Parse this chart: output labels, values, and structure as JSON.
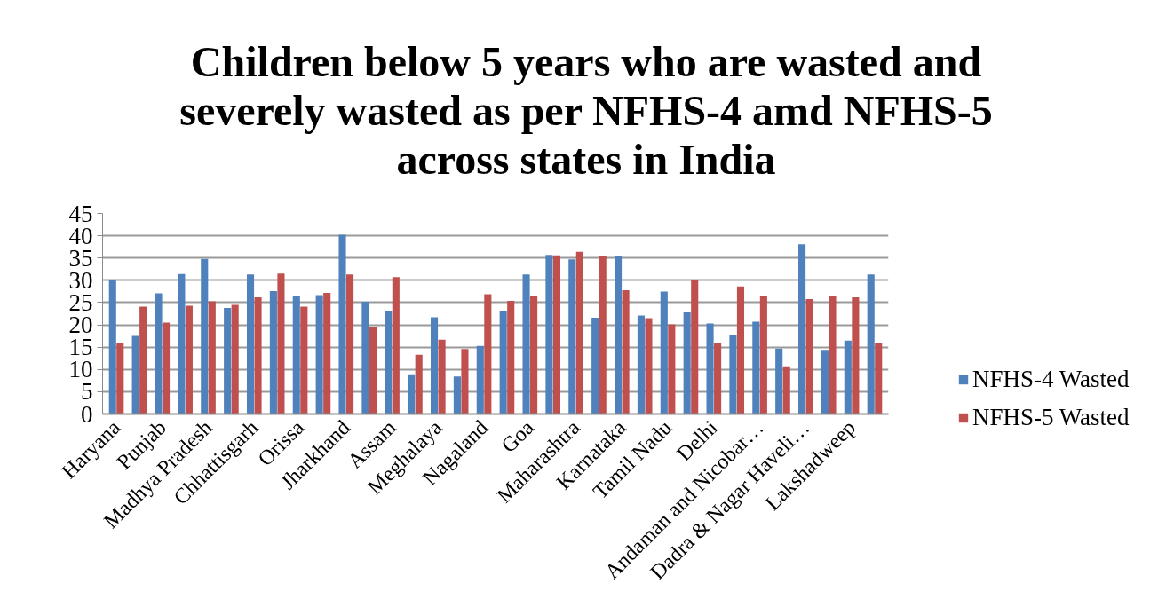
{
  "chart_data": {
    "type": "bar",
    "title": "Children below 5 years who are wasted and severely wasted as per NFHS-4 amd NFHS-5 across states in India",
    "categories": [
      "Haryana",
      null,
      "Punjab",
      null,
      "Madhya Pradesh",
      null,
      "Chhattisgarh",
      null,
      "Orissa",
      null,
      "Jharkhand",
      null,
      "Assam",
      null,
      "Meghalaya",
      null,
      "Nagaland",
      null,
      "Goa",
      null,
      "Maharashtra",
      null,
      "Karnataka",
      null,
      "Tamil Nadu",
      null,
      "Delhi",
      null,
      "Andaman and Nicobar…",
      null,
      "Dadra & Nagar Haveli…",
      null,
      "Lakshadweep",
      null
    ],
    "series": [
      {
        "name": "NFHS-4 Wasted",
        "color": "#4f81bd",
        "values": [
          30.0,
          17.5,
          27.1,
          31.4,
          34.8,
          23.8,
          31.3,
          27.6,
          26.6,
          26.7,
          40.2,
          25.2,
          23.1,
          8.9,
          21.7,
          8.4,
          15.3,
          23.0,
          31.3,
          35.7,
          34.7,
          21.6,
          35.5,
          22.1,
          27.5,
          22.8,
          20.3,
          17.8,
          20.7,
          14.7,
          38.1,
          14.4,
          16.5,
          31.3
        ]
      },
      {
        "name": "NFHS-5 Wasted",
        "color": "#c0504d",
        "values": [
          15.9,
          24.1,
          20.5,
          24.3,
          25.3,
          24.5,
          26.2,
          31.5,
          24.1,
          27.2,
          31.3,
          19.5,
          30.7,
          13.3,
          16.7,
          14.6,
          26.9,
          25.4,
          26.5,
          35.6,
          36.4,
          35.5,
          27.8,
          21.5,
          20.1,
          30.1,
          16.0,
          28.6,
          26.4,
          10.7,
          25.8,
          26.5,
          26.2,
          16.0
        ]
      }
    ],
    "ylim": [
      0,
      45
    ],
    "yticks": [
      0,
      5,
      10,
      15,
      20,
      25,
      30,
      35,
      40,
      45
    ],
    "grid": "y",
    "legend": "right"
  }
}
